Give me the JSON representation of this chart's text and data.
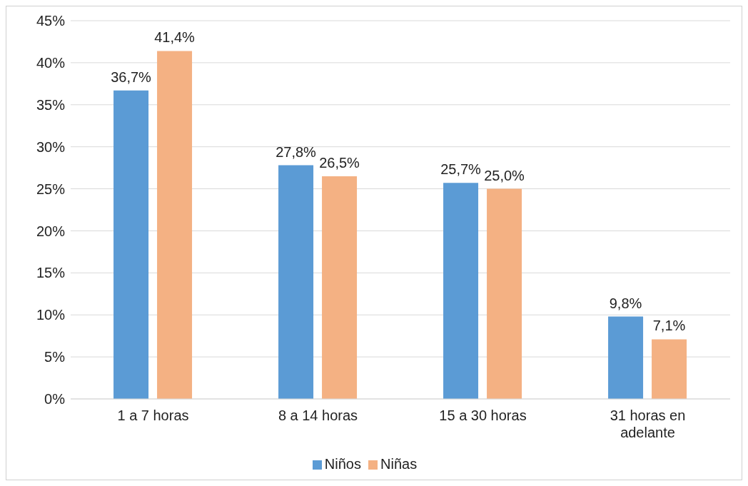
{
  "chart_data": {
    "type": "bar",
    "categories": [
      "1 a 7 horas",
      "8 a 14 horas",
      "15 a 30 horas",
      "31 horas en adelante"
    ],
    "series": [
      {
        "name": "Niños",
        "color": "#5b9bd5",
        "values": [
          36.7,
          27.8,
          25.7,
          9.8
        ],
        "value_labels": [
          "36,7%",
          "27,8%",
          "25,7%",
          "9,8%"
        ]
      },
      {
        "name": "Niñas",
        "color": "#f4b183",
        "values": [
          41.4,
          26.5,
          25.0,
          7.1
        ],
        "value_labels": [
          "41,4%",
          "26,5%",
          "25,0%",
          "7,1%"
        ]
      }
    ],
    "ylim": [
      0,
      45
    ],
    "yticks": [
      {
        "value": 0,
        "label": "0%"
      },
      {
        "value": 5,
        "label": "5%"
      },
      {
        "value": 10,
        "label": "10%"
      },
      {
        "value": 15,
        "label": "15%"
      },
      {
        "value": 20,
        "label": "20%"
      },
      {
        "value": 25,
        "label": "25%"
      },
      {
        "value": 30,
        "label": "30%"
      },
      {
        "value": 35,
        "label": "35%"
      },
      {
        "value": 40,
        "label": "40%"
      },
      {
        "value": 45,
        "label": "45%"
      }
    ],
    "grid": "y",
    "legend": "bottom"
  }
}
